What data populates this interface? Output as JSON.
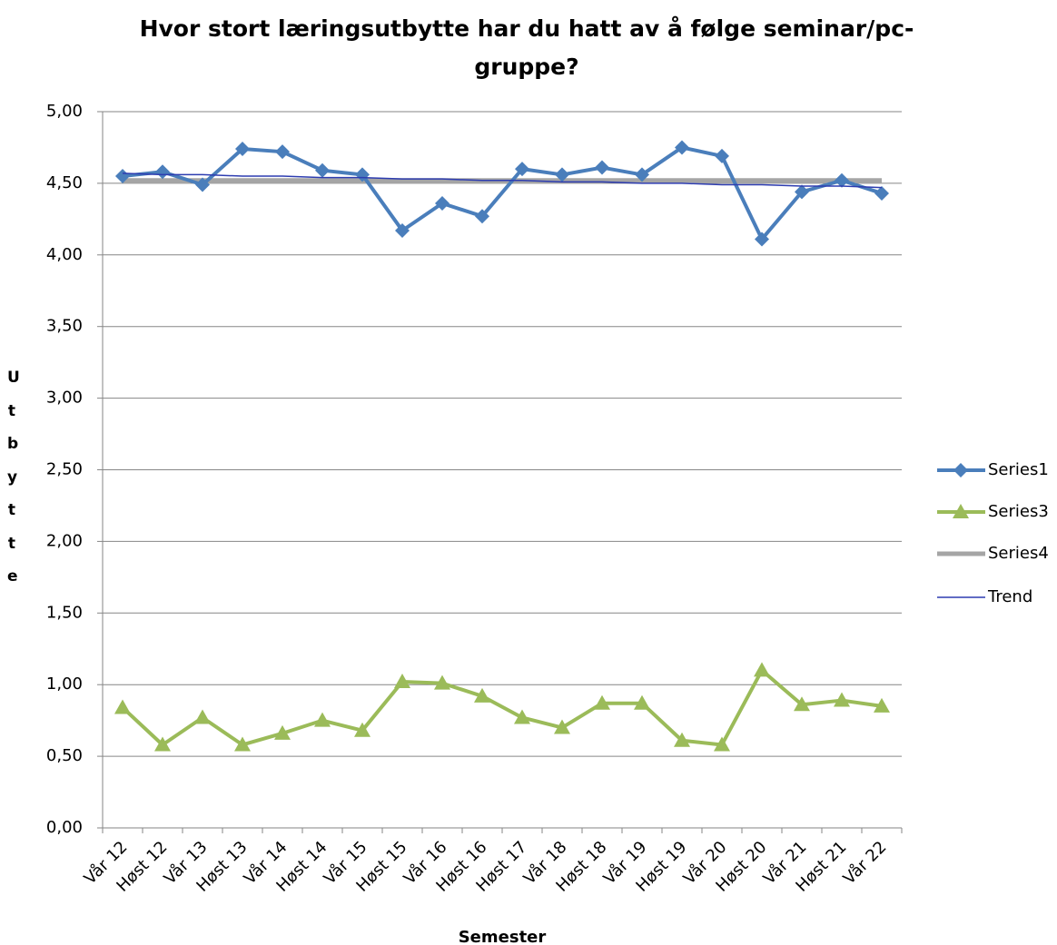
{
  "chart_data": {
    "type": "line",
    "title": [
      "Hvor stort læringsutbytte har du hatt av å følge seminar/pc-",
      "gruppe?"
    ],
    "x_label": "Semester",
    "y_label": "Utbytte",
    "categories": [
      "Vår 12",
      "Høst 12",
      "Vår 13",
      "Høst 13",
      "Vår 14",
      "Høst 14",
      "Vår 15",
      "Høst 15",
      "Vår 16",
      "Høst 16",
      "Høst 17",
      "Vår 18",
      "Høst 18",
      "Vår 19",
      "Høst 19",
      "Vår 20",
      "Høst 20",
      "Vår 21",
      "Høst 21",
      "Vår 22"
    ],
    "series": [
      {
        "name": "Series1",
        "color": "#4a7ebb",
        "marker": "diamond",
        "values": [
          4.55,
          4.58,
          4.49,
          4.74,
          4.72,
          4.59,
          4.56,
          4.17,
          4.36,
          4.27,
          4.6,
          4.56,
          4.61,
          4.56,
          4.75,
          4.69,
          4.11,
          4.44,
          4.52,
          4.43
        ]
      },
      {
        "name": "Series3",
        "color": "#9bbb59",
        "marker": "triangle",
        "values": [
          0.84,
          0.58,
          0.77,
          0.58,
          0.66,
          0.75,
          0.68,
          1.02,
          1.01,
          0.92,
          0.77,
          0.7,
          0.87,
          0.87,
          0.61,
          0.58,
          1.1,
          0.86,
          0.89,
          0.85
        ]
      },
      {
        "name": "Series4",
        "color": "#a5a5a5",
        "values": [
          4.52,
          4.52,
          4.52,
          4.52,
          4.52,
          4.52,
          4.52,
          4.52,
          4.52,
          4.52,
          4.52,
          4.52,
          4.52,
          4.52,
          4.52,
          4.52,
          4.52,
          4.52,
          4.52,
          4.52
        ]
      },
      {
        "name": "Trend",
        "color": "#2d3cb0",
        "values": [
          4.57,
          4.56,
          4.56,
          4.55,
          4.55,
          4.54,
          4.54,
          4.53,
          4.53,
          4.52,
          4.52,
          4.51,
          4.51,
          4.5,
          4.5,
          4.49,
          4.49,
          4.48,
          4.48,
          4.47
        ]
      }
    ],
    "ylim": [
      0,
      5
    ],
    "yticks": [
      {
        "value": 0,
        "label": "0,00"
      },
      {
        "value": 0.5,
        "label": "0,50"
      },
      {
        "value": 1,
        "label": "1,00"
      },
      {
        "value": 1.5,
        "label": "1,50"
      },
      {
        "value": 2,
        "label": "2,00"
      },
      {
        "value": 2.5,
        "label": "2,50"
      },
      {
        "value": 3,
        "label": "3,00"
      },
      {
        "value": 3.5,
        "label": "3,50"
      },
      {
        "value": 4,
        "label": "4,00"
      },
      {
        "value": 4.5,
        "label": "4,50"
      },
      {
        "value": 5,
        "label": "5,00"
      }
    ],
    "grid": true,
    "legend": "right"
  }
}
